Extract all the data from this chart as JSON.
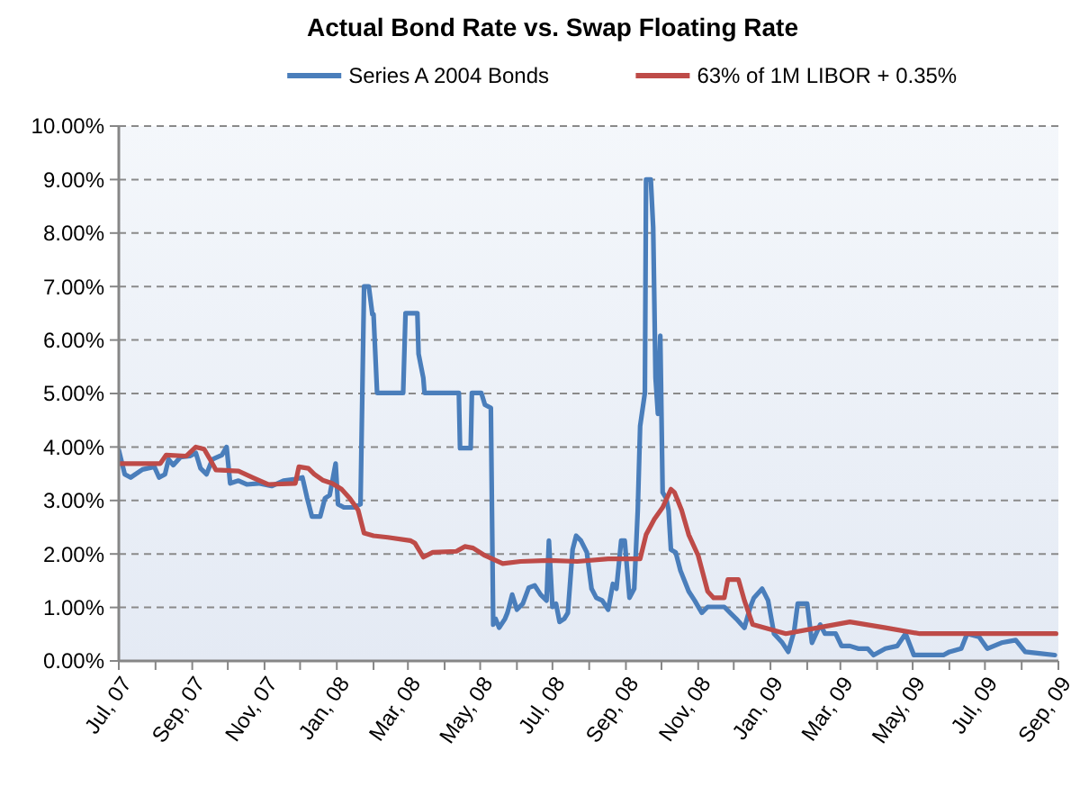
{
  "chart_data": {
    "type": "line",
    "title": "Actual Bond Rate vs. Swap Floating Rate",
    "series": [
      {
        "name": "Series A 2004 Bonds",
        "color": "#4a7ebb",
        "x": [
          "2007-07-01",
          "2007-07-06",
          "2007-07-11",
          "2007-07-21",
          "2007-07-31",
          "2007-08-04",
          "2007-08-09",
          "2007-08-12",
          "2007-08-16",
          "2007-08-22",
          "2007-08-30",
          "2007-09-04",
          "2007-09-08",
          "2007-09-13",
          "2007-09-18",
          "2007-09-26",
          "2007-09-30",
          "2007-10-03",
          "2007-10-10",
          "2007-10-17",
          "2007-10-27",
          "2007-11-07",
          "2007-11-17",
          "2007-11-27",
          "2007-12-03",
          "2007-12-07",
          "2007-12-11",
          "2007-12-18",
          "2007-12-22",
          "2007-12-26",
          "2007-12-31",
          "2008-01-02",
          "2008-01-07",
          "2008-01-15",
          "2008-01-21",
          "2008-01-24",
          "2008-01-28",
          "2008-01-31",
          "2008-02-01",
          "2008-02-04",
          "2008-02-26",
          "2008-02-28",
          "2008-03-09",
          "2008-03-10",
          "2008-03-14",
          "2008-03-15",
          "2008-04-13",
          "2008-04-14",
          "2008-04-23",
          "2008-04-24",
          "2008-05-02",
          "2008-05-05",
          "2008-05-10",
          "2008-05-12",
          "2008-05-14",
          "2008-05-17",
          "2008-05-22",
          "2008-05-24",
          "2008-05-28",
          "2008-06-01",
          "2008-06-06",
          "2008-06-11",
          "2008-06-16",
          "2008-06-21",
          "2008-06-26",
          "2008-06-28",
          "2008-07-01",
          "2008-07-04",
          "2008-07-07",
          "2008-07-11",
          "2008-07-14",
          "2008-07-18",
          "2008-07-21",
          "2008-07-25",
          "2008-07-30",
          "2008-08-03",
          "2008-08-07",
          "2008-08-12",
          "2008-08-17",
          "2008-08-21",
          "2008-08-24",
          "2008-08-28",
          "2008-08-31",
          "2008-09-04",
          "2008-09-08",
          "2008-09-11",
          "2008-09-13",
          "2008-09-17",
          "2008-09-18",
          "2008-09-22",
          "2008-09-24",
          "2008-09-26",
          "2008-09-28",
          "2008-09-30",
          "2008-10-02",
          "2008-10-05",
          "2008-10-07",
          "2008-10-09",
          "2008-10-13",
          "2008-10-17",
          "2008-10-24",
          "2008-10-29",
          "2008-11-04",
          "2008-11-09",
          "2008-11-14",
          "2008-11-23",
          "2008-11-28",
          "2008-12-03",
          "2008-12-10",
          "2008-12-15",
          "2008-12-18",
          "2008-12-25",
          "2008-12-30",
          "2009-01-04",
          "2009-01-11",
          "2009-01-16",
          "2009-01-21",
          "2009-01-24",
          "2009-02-01",
          "2009-02-05",
          "2009-02-12",
          "2009-02-16",
          "2009-02-25",
          "2009-03-02",
          "2009-03-09",
          "2009-03-16",
          "2009-03-24",
          "2009-03-29",
          "2009-04-08",
          "2009-04-18",
          "2009-04-25",
          "2009-05-02",
          "2009-05-27",
          "2009-06-01",
          "2009-06-11",
          "2009-06-16",
          "2009-06-26",
          "2009-07-03",
          "2009-07-15",
          "2009-07-27",
          "2009-08-04",
          "2009-08-16",
          "2009-08-29"
        ],
        "values": [
          3.94,
          3.49,
          3.43,
          3.58,
          3.63,
          3.43,
          3.49,
          3.77,
          3.66,
          3.81,
          3.83,
          3.89,
          3.6,
          3.49,
          3.77,
          3.85,
          4.0,
          3.32,
          3.37,
          3.3,
          3.32,
          3.27,
          3.37,
          3.4,
          3.43,
          3.04,
          2.7,
          2.7,
          3.04,
          3.1,
          3.69,
          2.93,
          2.87,
          2.87,
          2.93,
          7.0,
          7.0,
          6.48,
          6.48,
          5.01,
          5.01,
          6.5,
          6.5,
          5.74,
          5.29,
          5.01,
          5.01,
          3.98,
          3.98,
          5.01,
          5.01,
          4.79,
          4.73,
          0.68,
          0.79,
          0.62,
          0.79,
          0.9,
          1.24,
          0.96,
          1.07,
          1.37,
          1.41,
          1.24,
          1.13,
          2.25,
          1.01,
          1.07,
          0.73,
          0.79,
          0.9,
          2.08,
          2.34,
          2.25,
          2.03,
          1.35,
          1.18,
          1.13,
          0.96,
          1.44,
          1.35,
          2.25,
          2.25,
          1.18,
          1.35,
          2.82,
          4.39,
          5.01,
          9.0,
          9.0,
          8.11,
          5.29,
          4.62,
          6.08,
          3.15,
          3.04,
          2.82,
          2.08,
          2.03,
          1.69,
          1.3,
          1.13,
          0.9,
          1.01,
          1.01,
          1.01,
          0.9,
          0.79,
          0.62,
          1.01,
          1.18,
          1.35,
          1.13,
          0.51,
          0.34,
          0.17,
          0.56,
          1.07,
          1.07,
          0.34,
          0.68,
          0.51,
          0.51,
          0.28,
          0.28,
          0.23,
          0.23,
          0.11,
          0.23,
          0.28,
          0.51,
          0.11,
          0.11,
          0.17,
          0.23,
          0.51,
          0.45,
          0.23,
          0.34,
          0.39,
          0.17,
          0.14,
          0.11
        ]
      },
      {
        "name": "63% of 1M LIBOR + 0.35%",
        "color": "#be4b48",
        "x": [
          "2007-07-01",
          "2007-08-05",
          "2007-08-10",
          "2007-08-27",
          "2007-09-04",
          "2007-09-11",
          "2007-09-16",
          "2007-09-21",
          "2007-10-10",
          "2007-10-22",
          "2007-11-04",
          "2007-11-27",
          "2007-11-30",
          "2007-12-08",
          "2007-12-13",
          "2007-12-20",
          "2007-12-28",
          "2008-01-05",
          "2008-01-12",
          "2008-01-19",
          "2008-01-24",
          "2008-02-01",
          "2008-02-13",
          "2008-03-03",
          "2008-03-07",
          "2008-03-14",
          "2008-03-22",
          "2008-04-11",
          "2008-04-18",
          "2008-04-25",
          "2008-05-05",
          "2008-05-20",
          "2008-06-04",
          "2008-06-28",
          "2008-07-22",
          "2008-08-17",
          "2008-09-13",
          "2008-09-18",
          "2008-09-25",
          "2008-10-02",
          "2008-10-09",
          "2008-10-12",
          "2008-10-18",
          "2008-10-24",
          "2008-11-01",
          "2008-11-09",
          "2008-11-14",
          "2008-11-23",
          "2008-11-26",
          "2008-12-05",
          "2008-12-10",
          "2008-12-17",
          "2009-01-14",
          "2009-02-10",
          "2009-03-09",
          "2009-04-08",
          "2009-05-07",
          "2009-08-30"
        ],
        "values": [
          3.69,
          3.69,
          3.85,
          3.83,
          4.0,
          3.96,
          3.77,
          3.57,
          3.55,
          3.43,
          3.3,
          3.32,
          3.63,
          3.6,
          3.49,
          3.38,
          3.32,
          3.21,
          3.04,
          2.82,
          2.39,
          2.34,
          2.31,
          2.25,
          2.2,
          1.94,
          2.03,
          2.05,
          2.14,
          2.11,
          1.97,
          1.82,
          1.86,
          1.88,
          1.86,
          1.91,
          1.91,
          2.36,
          2.65,
          2.87,
          3.21,
          3.15,
          2.82,
          2.36,
          1.97,
          1.3,
          1.18,
          1.18,
          1.52,
          1.52,
          1.13,
          0.68,
          0.51,
          0.62,
          0.73,
          0.62,
          0.51,
          0.51
        ]
      }
    ],
    "xlim": [
      "2007-07-01",
      "2009-09-01"
    ],
    "xticks": [
      {
        "value": "2007-07-01",
        "label": "Jul, 07"
      },
      {
        "value": "2007-08-01",
        "label": null
      },
      {
        "value": "2007-09-01",
        "label": "Sep, 07"
      },
      {
        "value": "2007-10-01",
        "label": null
      },
      {
        "value": "2007-11-01",
        "label": "Nov, 07"
      },
      {
        "value": "2007-12-01",
        "label": null
      },
      {
        "value": "2008-01-01",
        "label": "Jan, 08"
      },
      {
        "value": "2008-02-01",
        "label": null
      },
      {
        "value": "2008-03-01",
        "label": "Mar, 08"
      },
      {
        "value": "2008-04-01",
        "label": null
      },
      {
        "value": "2008-05-01",
        "label": "May, 08"
      },
      {
        "value": "2008-06-01",
        "label": null
      },
      {
        "value": "2008-07-01",
        "label": "Jul, 08"
      },
      {
        "value": "2008-08-01",
        "label": null
      },
      {
        "value": "2008-09-01",
        "label": "Sep, 08"
      },
      {
        "value": "2008-10-01",
        "label": null
      },
      {
        "value": "2008-11-01",
        "label": "Nov, 08"
      },
      {
        "value": "2008-12-01",
        "label": null
      },
      {
        "value": "2009-01-01",
        "label": "Jan, 09"
      },
      {
        "value": "2009-02-01",
        "label": null
      },
      {
        "value": "2009-03-01",
        "label": "Mar, 09"
      },
      {
        "value": "2009-04-01",
        "label": null
      },
      {
        "value": "2009-05-01",
        "label": "May, 09"
      },
      {
        "value": "2009-06-01",
        "label": null
      },
      {
        "value": "2009-07-01",
        "label": "Jul, 09"
      },
      {
        "value": "2009-08-01",
        "label": null
      },
      {
        "value": "2009-09-01",
        "label": "Sep, 09"
      }
    ],
    "ylim": [
      0,
      10
    ],
    "yticks": [
      {
        "value": 0,
        "label": "0.00%"
      },
      {
        "value": 1,
        "label": "1.00%"
      },
      {
        "value": 2,
        "label": "2.00%"
      },
      {
        "value": 3,
        "label": "3.00%"
      },
      {
        "value": 4,
        "label": "4.00%"
      },
      {
        "value": 5,
        "label": "5.00%"
      },
      {
        "value": 6,
        "label": "6.00%"
      },
      {
        "value": 7,
        "label": "7.00%"
      },
      {
        "value": 8,
        "label": "8.00%"
      },
      {
        "value": 9,
        "label": "9.00%"
      },
      {
        "value": 10,
        "label": "10.00%"
      }
    ],
    "grid": "y",
    "legend": "top",
    "marker": "none",
    "line_style": "solid"
  }
}
